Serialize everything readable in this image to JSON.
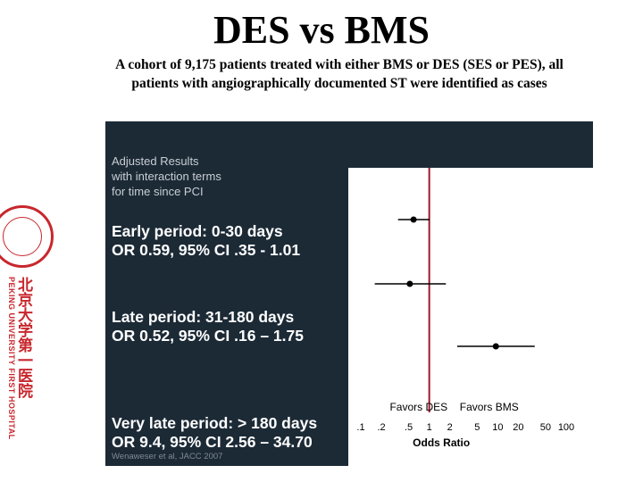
{
  "page": {
    "title": "DES vs BMS",
    "subtitle_line1": "A cohort of 9,175 patients treated with either BMS or DES (SES or PES), all",
    "subtitle_line2": "patients with angiographically documented ST were identified as cases"
  },
  "logo": {
    "university_en": "PEKING UNIVERSITY FIRST HOSPITAL",
    "university_cn": "北京大学第一医院"
  },
  "panel": {
    "note_line1": "Adjusted Results",
    "note_line2": "with interaction terms",
    "note_line3": "for time since PCI",
    "periods": [
      {
        "line1": "Early period: 0-30 days",
        "line2": "OR 0.59, 95% CI .35 - 1.01"
      },
      {
        "line1": "Late period: 31-180 days",
        "line2": "OR 0.52, 95% CI .16 – 1.75"
      },
      {
        "line1": "Very late period: > 180 days",
        "line2": "OR 9.4, 95% CI 2.56 – 34.70"
      }
    ],
    "credit": "Wenaweser et al, JACC 2007"
  },
  "colors": {
    "panel_bg": "#1c2a36",
    "reference_line": "#a0162a",
    "marker": "#000000"
  },
  "chart_data": {
    "type": "forest",
    "x_scale": "log",
    "xlabel": "Odds Ratio",
    "x_ticks": [
      {
        "value": 0.1,
        "label": ".1"
      },
      {
        "value": 0.2,
        "label": ".2"
      },
      {
        "value": 0.5,
        "label": ".5"
      },
      {
        "value": 1,
        "label": "1"
      },
      {
        "value": 2,
        "label": "2"
      },
      {
        "value": 5,
        "label": "5"
      },
      {
        "value": 10,
        "label": "10"
      },
      {
        "value": 20,
        "label": "20"
      },
      {
        "value": 50,
        "label": "50"
      },
      {
        "value": 100,
        "label": "100"
      }
    ],
    "xlim": [
      0.1,
      100
    ],
    "reference": 1,
    "favors_left": "Favors DES",
    "favors_right": "Favors BMS",
    "rows": [
      {
        "label": "Early period",
        "or": 0.59,
        "ci_low": 0.35,
        "ci_high": 1.01
      },
      {
        "label": "Late period",
        "or": 0.52,
        "ci_low": 0.16,
        "ci_high": 1.75
      },
      {
        "label": "Very late period",
        "or": 9.4,
        "ci_low": 2.56,
        "ci_high": 34.7
      }
    ]
  }
}
